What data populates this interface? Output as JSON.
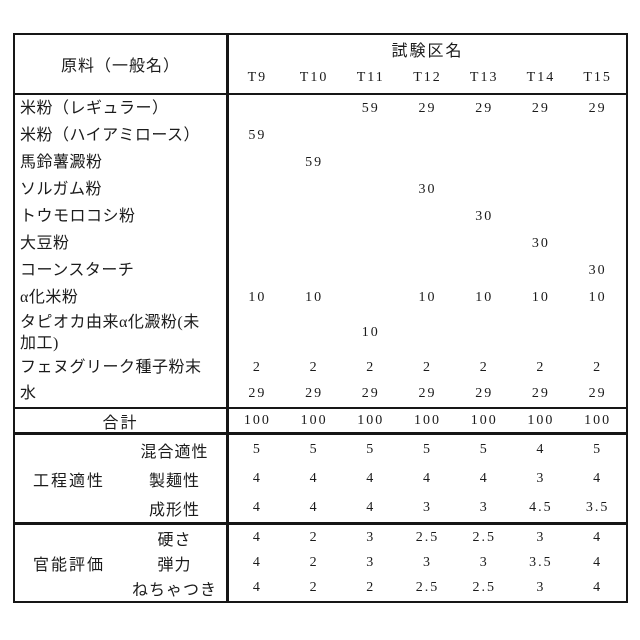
{
  "table": {
    "header": {
      "ingredient_col": "原料（一般名）",
      "group_col": "試験区名",
      "columns": [
        "T9",
        "T10",
        "T11",
        "T12",
        "T13",
        "T14",
        "T15"
      ]
    },
    "ingredients": [
      {
        "label": "米粉（レギュラー）",
        "values": [
          "",
          "",
          "59",
          "29",
          "29",
          "29",
          "29"
        ]
      },
      {
        "label": "米粉（ハイアミロース）",
        "values": [
          "59",
          "",
          "",
          "",
          "",
          "",
          ""
        ]
      },
      {
        "label": "馬鈴薯澱粉",
        "values": [
          "",
          "59",
          "",
          "",
          "",
          "",
          ""
        ]
      },
      {
        "label": "ソルガム粉",
        "values": [
          "",
          "",
          "",
          "30",
          "",
          "",
          ""
        ]
      },
      {
        "label": "トウモロコシ粉",
        "values": [
          "",
          "",
          "",
          "",
          "30",
          "",
          ""
        ]
      },
      {
        "label": "大豆粉",
        "values": [
          "",
          "",
          "",
          "",
          "",
          "30",
          ""
        ]
      },
      {
        "label": "コーンスターチ",
        "values": [
          "",
          "",
          "",
          "",
          "",
          "",
          "30"
        ]
      },
      {
        "label": "α化米粉",
        "values": [
          "10",
          "10",
          "",
          "10",
          "10",
          "10",
          "10"
        ]
      },
      {
        "label": "タピオカ由来α化澱粉(未\n加工)",
        "values": [
          "",
          "",
          "10",
          "",
          "",
          "",
          ""
        ]
      },
      {
        "label": "フェヌグリーク種子粉末",
        "values": [
          "2",
          "2",
          "2",
          "2",
          "2",
          "2",
          "2"
        ]
      },
      {
        "label": "水",
        "values": [
          "29",
          "29",
          "29",
          "29",
          "29",
          "29",
          "29"
        ]
      }
    ],
    "total": {
      "label": "合計",
      "values": [
        "100",
        "100",
        "100",
        "100",
        "100",
        "100",
        "100"
      ]
    },
    "process": {
      "group": "工程適性",
      "rows": [
        {
          "label": "混合適性",
          "values": [
            "5",
            "5",
            "5",
            "5",
            "5",
            "4",
            "5"
          ]
        },
        {
          "label": "製麺性",
          "values": [
            "4",
            "4",
            "4",
            "4",
            "4",
            "3",
            "4"
          ]
        },
        {
          "label": "成形性",
          "values": [
            "4",
            "4",
            "4",
            "3",
            "3",
            "4.5",
            "3.5"
          ]
        }
      ]
    },
    "sensory": {
      "group": "官能評価",
      "rows": [
        {
          "label": "硬さ",
          "values": [
            "4",
            "2",
            "3",
            "2.5",
            "2.5",
            "3",
            "4"
          ]
        },
        {
          "label": "弾力",
          "values": [
            "4",
            "2",
            "3",
            "3",
            "3",
            "3.5",
            "4"
          ]
        },
        {
          "label": "ねちゃつき",
          "values": [
            "4",
            "2",
            "2",
            "2.5",
            "2.5",
            "3",
            "4"
          ]
        }
      ]
    }
  }
}
